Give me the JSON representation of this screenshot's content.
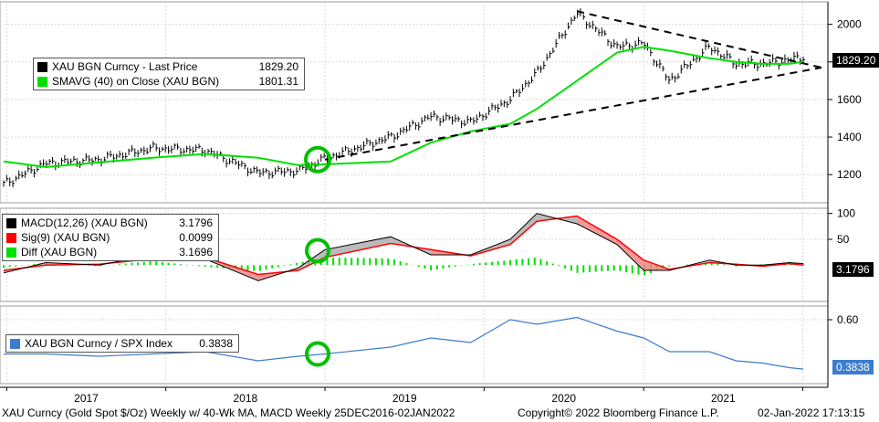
{
  "chart_data": [
    {
      "type": "line",
      "panel": "price",
      "ylim": [
        1050,
        2120
      ],
      "yticks": [
        1200,
        1400,
        1600,
        1800,
        2000
      ],
      "x": [
        "2016-12-25",
        "2017-04",
        "2017-08",
        "2017-12",
        "2018-04",
        "2018-08",
        "2018-11",
        "2019-01",
        "2019-06",
        "2019-09",
        "2019-12",
        "2020-03",
        "2020-05",
        "2020-08",
        "2020-11",
        "2021-01",
        "2021-03",
        "2021-06",
        "2021-08",
        "2021-10",
        "2021-12",
        "2022-01-02"
      ],
      "series": [
        {
          "name": "XAU BGN Curncy - Last Price",
          "value_label": "1829.20",
          "color": "#000000",
          "values": [
            1150,
            1260,
            1280,
            1340,
            1330,
            1210,
            1220,
            1285,
            1400,
            1510,
            1480,
            1600,
            1740,
            2060,
            1880,
            1900,
            1700,
            1880,
            1790,
            1790,
            1810,
            1829
          ]
        },
        {
          "name": "SMAVG (40)  on Close (XAU BGN)",
          "value_label": "1801.31",
          "color": "#00e000",
          "values": [
            1270,
            1240,
            1265,
            1290,
            1310,
            1290,
            1250,
            1255,
            1270,
            1370,
            1430,
            1470,
            1550,
            1700,
            1850,
            1880,
            1860,
            1820,
            1800,
            1790,
            1790,
            1801
          ]
        }
      ],
      "trendlines": [
        {
          "from": [
            "2019-01",
            1280
          ],
          "to": [
            "2022-01-02",
            1770
          ]
        },
        {
          "from": [
            "2020-08",
            2070
          ],
          "to": [
            "2022-01-02",
            1770
          ]
        }
      ],
      "last_price_tag": "1829.20"
    },
    {
      "type": "line",
      "panel": "macd",
      "ylim": [
        -70,
        110
      ],
      "yticks": [
        50,
        100
      ],
      "series": [
        {
          "name": "MACD(12,26) (XAU BGN)",
          "value_label": "3.1796",
          "color": "#000000",
          "values": [
            -15,
            5,
            0,
            20,
            12,
            -30,
            -5,
            30,
            55,
            20,
            20,
            50,
            100,
            80,
            40,
            -10,
            -10,
            10,
            0,
            0,
            5,
            3
          ]
        },
        {
          "name": "Sig(9) (XAU BGN)",
          "value_label": "0.0099",
          "color": "#ff0000",
          "values": [
            -10,
            0,
            2,
            12,
            15,
            -18,
            -10,
            15,
            42,
            30,
            18,
            40,
            85,
            95,
            50,
            10,
            -8,
            5,
            2,
            -2,
            3,
            0
          ]
        },
        {
          "name": "Diff (XAU BGN)",
          "value_label": "3.1696",
          "color": "#00e000",
          "values": [
            -5,
            5,
            -2,
            8,
            -3,
            -12,
            5,
            15,
            13,
            -10,
            2,
            10,
            15,
            -15,
            -10,
            -20,
            -2,
            5,
            -2,
            2,
            2,
            3
          ]
        }
      ],
      "last_value_tag": "3.1796"
    },
    {
      "type": "line",
      "panel": "ratio",
      "ylim": [
        0.32,
        0.66
      ],
      "yticks": [
        0.6
      ],
      "series": [
        {
          "name": "XAU BGN Curncy / SPX Index",
          "value_label": "0.3838",
          "color": "#3c7cd0",
          "values": [
            0.45,
            0.45,
            0.44,
            0.45,
            0.46,
            0.42,
            0.44,
            0.45,
            0.48,
            0.52,
            0.5,
            0.6,
            0.58,
            0.61,
            0.55,
            0.52,
            0.46,
            0.46,
            0.42,
            0.41,
            0.39,
            0.3838
          ]
        }
      ],
      "last_value_tag": "0.3838"
    }
  ],
  "x_axis": {
    "year_labels": [
      "2017",
      "2018",
      "2019",
      "2020",
      "2021"
    ]
  },
  "annotations": {
    "circle_date": "2019-01",
    "circle_color": "#00c000"
  },
  "footer": {
    "left": "XAU Curncy (Gold Spot  $/Oz) Weekly w/ 40-Wk MA, MACD  Weekly 25DEC2016-02JAN2022",
    "copyright": "Copyright© 2022 Bloomberg Finance L.P.",
    "timestamp": "02-Jan-2022 17:13:15"
  },
  "colors": {
    "price": "#000000",
    "sma": "#00e000",
    "macd": "#000000",
    "signal": "#ff0000",
    "diff": "#00e000",
    "ratio": "#3c7cd0",
    "fill_up": "#aaaaaa",
    "fill_down": "#f08080",
    "grid": "#d8d8d8"
  }
}
